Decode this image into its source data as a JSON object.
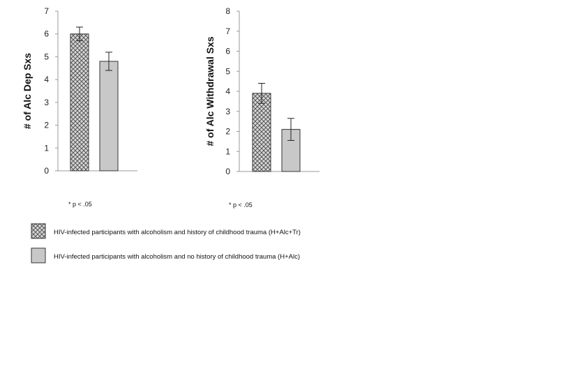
{
  "chart_data": [
    {
      "type": "bar",
      "ylabel": "# of Alc Dep Sxs",
      "ylim": [
        0,
        7
      ],
      "yticks": [
        0,
        1,
        2,
        3,
        4,
        5,
        6,
        7
      ],
      "series": [
        {
          "values": [
            6.0
          ],
          "error": [
            0.3
          ],
          "pattern": "crosshatch"
        },
        {
          "values": [
            4.8
          ],
          "error": [
            0.4
          ],
          "pattern": "solid"
        }
      ],
      "note": "* p < .05"
    },
    {
      "type": "bar",
      "ylabel": "# of Alc Withdrawal Sxs",
      "ylim": [
        0,
        8
      ],
      "yticks": [
        0,
        1,
        2,
        3,
        4,
        5,
        6,
        7,
        8
      ],
      "series": [
        {
          "values": [
            3.9
          ],
          "error": [
            0.5
          ],
          "pattern": "crosshatch"
        },
        {
          "values": [
            2.1
          ],
          "error": [
            0.55
          ],
          "pattern": "solid"
        }
      ],
      "note": "* p < .05"
    }
  ],
  "legend": [
    {
      "label": "HIV-infected participants with alcoholism and history of childhood trauma (H+Alc+Tr)",
      "pattern": "crosshatch"
    },
    {
      "label": "HIV-infected participants with alcoholism and no history of childhood trauma (H+Alc)",
      "pattern": "solid"
    }
  ],
  "colors": {
    "bar_fill": "#c8c8c8",
    "outline": "#333333",
    "axis": "#999999",
    "hatch": "#555555"
  }
}
